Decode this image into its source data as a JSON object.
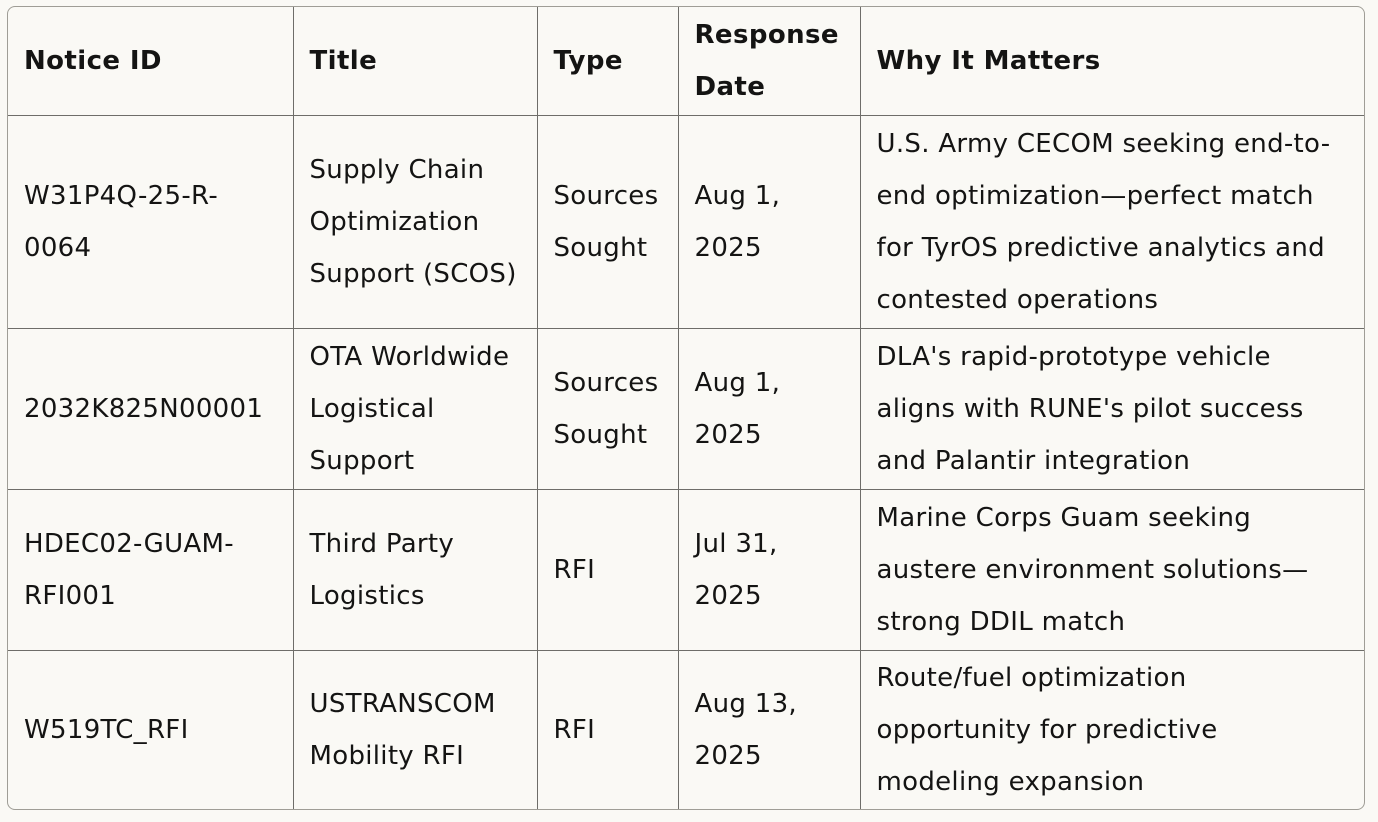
{
  "table": {
    "headers": {
      "notice_id": "Notice ID",
      "title": "Title",
      "type": "Type",
      "response_date": "Response Date",
      "why": "Why It Matters"
    },
    "rows": [
      {
        "notice_id": "W31P4Q-25-R-0064",
        "title": "Supply Chain Optimization Support (SCOS)",
        "type": "Sources Sought",
        "response_date": "Aug 1, 2025",
        "why": "U.S. Army CECOM seeking end-to-end optimization—perfect match for TyrOS predictive analytics and contested operations"
      },
      {
        "notice_id": "2032K825N00001",
        "title": "OTA Worldwide Logistical Support",
        "type": "Sources Sought",
        "response_date": "Aug 1, 2025",
        "why": "DLA's rapid-prototype vehicle aligns with RUNE's pilot success and Palantir integration"
      },
      {
        "notice_id": "HDEC02-GUAM-RFI001",
        "title": "Third Party Logistics",
        "type": "RFI",
        "response_date": "Jul 31, 2025",
        "why": "Marine Corps Guam seeking austere environment solutions—strong DDIL match"
      },
      {
        "notice_id": "W519TC_RFI",
        "title": "USTRANSCOM Mobility RFI",
        "type": "RFI",
        "response_date": "Aug 13, 2025",
        "why": "Route/fuel optimization opportunity for predictive modeling expansion"
      }
    ]
  }
}
